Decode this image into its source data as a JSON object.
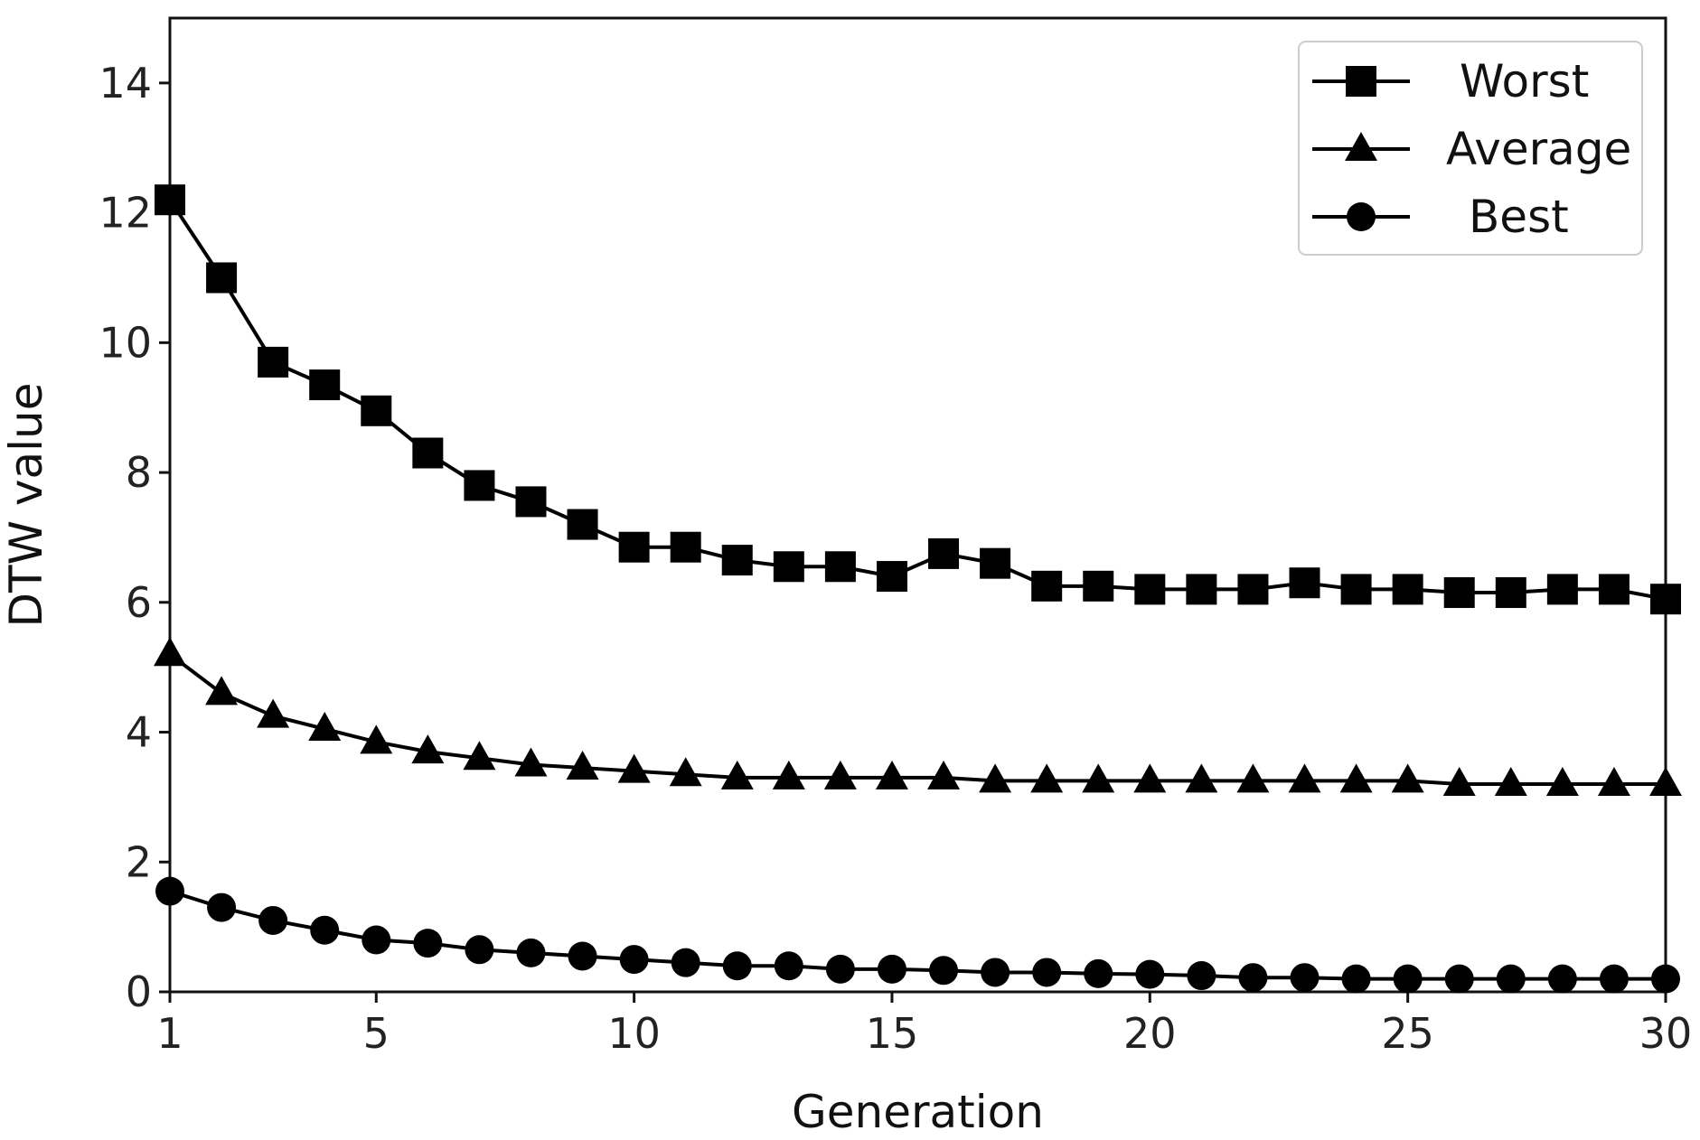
{
  "chart_data": {
    "type": "line",
    "title": "",
    "xlabel": "Generation",
    "ylabel": "DTW value",
    "xlim": [
      1,
      30
    ],
    "ylim": [
      0,
      15
    ],
    "grid": false,
    "legend_position": "top-right",
    "xticks": [
      1,
      5,
      10,
      15,
      20,
      25,
      30
    ],
    "yticks": [
      0,
      2,
      4,
      6,
      8,
      10,
      12,
      14
    ],
    "x": [
      1,
      2,
      3,
      4,
      5,
      6,
      7,
      8,
      9,
      10,
      11,
      12,
      13,
      14,
      15,
      16,
      17,
      18,
      19,
      20,
      21,
      22,
      23,
      24,
      25,
      26,
      27,
      28,
      29,
      30
    ],
    "series": [
      {
        "name": "Worst",
        "marker": "square",
        "color": "#000000",
        "values": [
          12.2,
          11.0,
          9.7,
          9.35,
          8.95,
          8.3,
          7.8,
          7.55,
          7.2,
          6.85,
          6.85,
          6.65,
          6.55,
          6.55,
          6.4,
          6.75,
          6.6,
          6.25,
          6.25,
          6.2,
          6.2,
          6.2,
          6.3,
          6.2,
          6.2,
          6.15,
          6.15,
          6.2,
          6.2,
          6.05
        ]
      },
      {
        "name": "Average",
        "marker": "triangle",
        "color": "#000000",
        "values": [
          5.2,
          4.6,
          4.25,
          4.05,
          3.85,
          3.7,
          3.6,
          3.5,
          3.45,
          3.4,
          3.35,
          3.3,
          3.3,
          3.3,
          3.3,
          3.3,
          3.25,
          3.25,
          3.25,
          3.25,
          3.25,
          3.25,
          3.25,
          3.25,
          3.25,
          3.2,
          3.2,
          3.2,
          3.2,
          3.2
        ]
      },
      {
        "name": "Best",
        "marker": "circle",
        "color": "#000000",
        "values": [
          1.55,
          1.3,
          1.1,
          0.95,
          0.8,
          0.75,
          0.65,
          0.6,
          0.55,
          0.5,
          0.45,
          0.4,
          0.4,
          0.35,
          0.35,
          0.33,
          0.3,
          0.3,
          0.28,
          0.27,
          0.25,
          0.22,
          0.22,
          0.2,
          0.2,
          0.2,
          0.2,
          0.2,
          0.2,
          0.2
        ]
      }
    ]
  }
}
